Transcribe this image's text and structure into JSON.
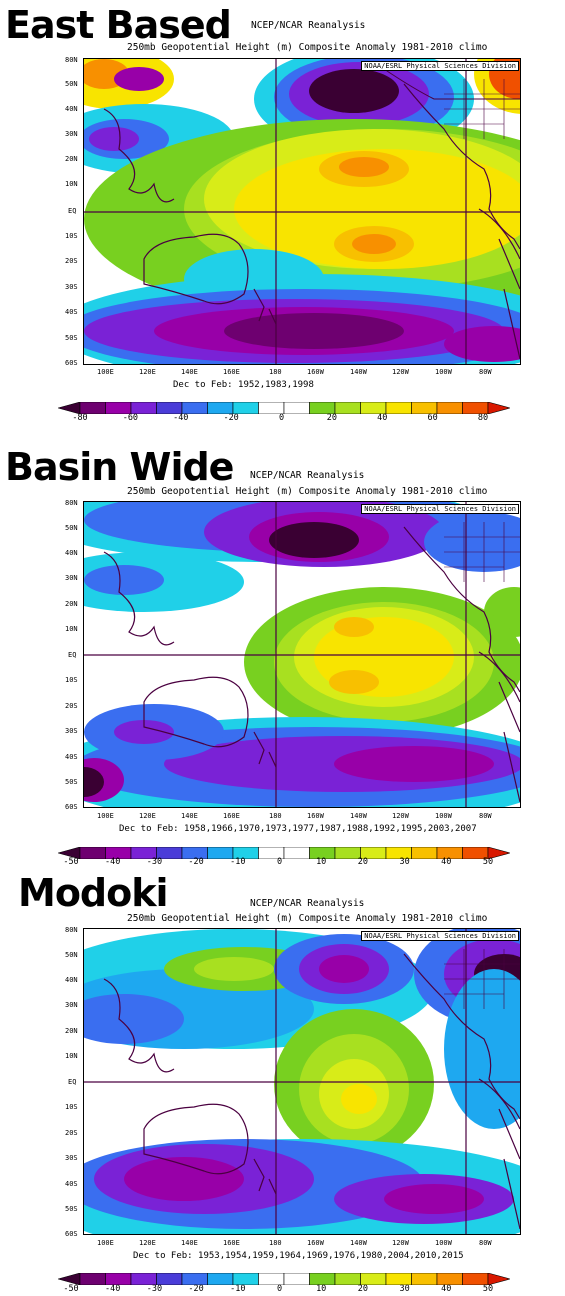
{
  "panels": [
    {
      "title": "East Based",
      "header1": "NCEP/NCAR Reanalysis",
      "header2": "250mb Geopotential Height (m) Composite Anomaly 1981-2010 climo",
      "credit": "NOAA/ESRL Physical Sciences Division",
      "footer": "Dec to Feb: 1952,1983,1998",
      "colorbar_ticks": [
        "-80",
        "-60",
        "-40",
        "-20",
        "0",
        "20",
        "40",
        "60",
        "80"
      ]
    },
    {
      "title": "Basin Wide",
      "header1": "NCEP/NCAR Reanalysis",
      "header2": "250mb Geopotential Height (m) Composite Anomaly 1981-2010 climo",
      "credit": "NOAA/ESRL Physical Sciences Division",
      "footer": "Dec to Feb: 1958,1966,1970,1973,1977,1987,1988,1992,1995,2003,2007",
      "colorbar_ticks": [
        "-50",
        "-40",
        "-30",
        "-20",
        "-10",
        "0",
        "10",
        "20",
        "30",
        "40",
        "50"
      ]
    },
    {
      "title": "Modoki",
      "header1": "NCEP/NCAR Reanalysis",
      "header2": "250mb Geopotential Height (m) Composite Anomaly 1981-2010 climo",
      "credit": "NOAA/ESRL Physical Sciences Division",
      "footer": "Dec to Feb: 1953,1954,1959,1964,1969,1976,1980,2004,2010,2015",
      "colorbar_ticks": [
        "-50",
        "-40",
        "-30",
        "-20",
        "-10",
        "0",
        "10",
        "20",
        "30",
        "40",
        "50"
      ]
    }
  ],
  "map": {
    "lat_labels": [
      "80N",
      "50N",
      "40N",
      "30N",
      "20N",
      "10N",
      "EQ",
      "10S",
      "20S",
      "30S",
      "40S",
      "50S",
      "60S"
    ],
    "lon_labels": [
      "100E",
      "120E",
      "140E",
      "160E",
      "180",
      "160W",
      "140W",
      "120W",
      "100W",
      "80W"
    ]
  },
  "colorbar_colors": [
    "#3a0033",
    "#6e0070",
    "#9800a8",
    "#7a22d6",
    "#4a3cd8",
    "#3a6ef0",
    "#1ea8f0",
    "#20d0e8",
    "#ffffff",
    "#ffffff",
    "#78d020",
    "#a8e020",
    "#d8ec18",
    "#f8e400",
    "#f8c000",
    "#f89000",
    "#f05000",
    "#d81800"
  ]
}
